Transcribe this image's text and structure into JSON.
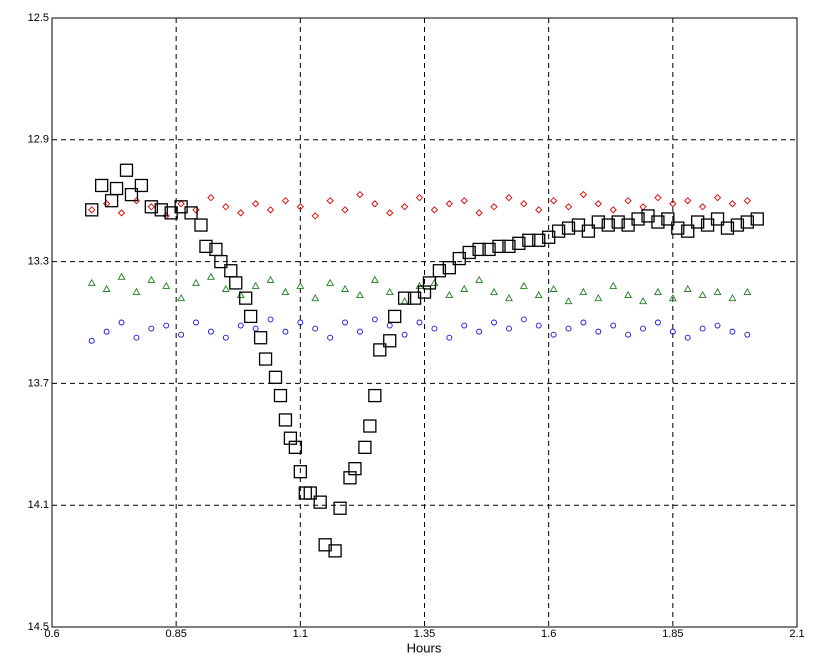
{
  "chart_data": {
    "type": "scatter",
    "x_label": "Hours",
    "xlim": [
      0.6,
      2.1
    ],
    "xticks": [
      0.6,
      0.85,
      1.1,
      1.35,
      1.6,
      1.85,
      2.1
    ],
    "ylim": [
      14.5,
      12.5
    ],
    "yticks": [
      12.5,
      12.9,
      13.3,
      13.7,
      14.1,
      14.5
    ],
    "grid": true,
    "series": [
      {
        "color": "#e00000",
        "marker": "diamond",
        "x": [
          0.68,
          0.71,
          0.74,
          0.77,
          0.8,
          0.83,
          0.86,
          0.89,
          0.92,
          0.95,
          0.98,
          1.01,
          1.04,
          1.07,
          1.1,
          1.13,
          1.16,
          1.19,
          1.22,
          1.25,
          1.28,
          1.31,
          1.34,
          1.37,
          1.4,
          1.43,
          1.46,
          1.49,
          1.52,
          1.55,
          1.58,
          1.61,
          1.64,
          1.67,
          1.7,
          1.73,
          1.76,
          1.79,
          1.82,
          1.85,
          1.88,
          1.91,
          1.94,
          1.97,
          2.0
        ],
        "values": [
          13.13,
          13.11,
          13.14,
          13.1,
          13.12,
          13.15,
          13.11,
          13.13,
          13.09,
          13.12,
          13.14,
          13.11,
          13.13,
          13.1,
          13.12,
          13.15,
          13.1,
          13.13,
          13.08,
          13.11,
          13.14,
          13.12,
          13.09,
          13.13,
          13.11,
          13.1,
          13.14,
          13.12,
          13.09,
          13.11,
          13.13,
          13.1,
          13.12,
          13.08,
          13.11,
          13.13,
          13.1,
          13.12,
          13.09,
          13.11,
          13.1,
          13.12,
          13.09,
          13.11,
          13.1
        ]
      },
      {
        "color": "#208020",
        "marker": "triangle",
        "x": [
          0.68,
          0.71,
          0.74,
          0.77,
          0.8,
          0.83,
          0.86,
          0.89,
          0.92,
          0.95,
          0.98,
          1.01,
          1.04,
          1.07,
          1.1,
          1.13,
          1.16,
          1.19,
          1.22,
          1.25,
          1.28,
          1.31,
          1.34,
          1.37,
          1.4,
          1.43,
          1.46,
          1.49,
          1.52,
          1.55,
          1.58,
          1.61,
          1.64,
          1.67,
          1.7,
          1.73,
          1.76,
          1.79,
          1.82,
          1.85,
          1.88,
          1.91,
          1.94,
          1.97,
          2.0
        ],
        "values": [
          13.37,
          13.39,
          13.35,
          13.4,
          13.36,
          13.38,
          13.42,
          13.37,
          13.35,
          13.39,
          13.41,
          13.38,
          13.36,
          13.4,
          13.38,
          13.42,
          13.37,
          13.39,
          13.41,
          13.36,
          13.4,
          13.43,
          13.38,
          13.37,
          13.41,
          13.39,
          13.36,
          13.4,
          13.42,
          13.38,
          13.41,
          13.39,
          13.43,
          13.4,
          13.42,
          13.38,
          13.41,
          13.43,
          13.4,
          13.42,
          13.39,
          13.41,
          13.4,
          13.42,
          13.4
        ]
      },
      {
        "color": "#1010e0",
        "marker": "circle",
        "x": [
          0.68,
          0.71,
          0.74,
          0.77,
          0.8,
          0.83,
          0.86,
          0.89,
          0.92,
          0.95,
          0.98,
          1.01,
          1.04,
          1.07,
          1.1,
          1.13,
          1.16,
          1.19,
          1.22,
          1.25,
          1.28,
          1.31,
          1.34,
          1.37,
          1.4,
          1.43,
          1.46,
          1.49,
          1.52,
          1.55,
          1.58,
          1.61,
          1.64,
          1.67,
          1.7,
          1.73,
          1.76,
          1.79,
          1.82,
          1.85,
          1.88,
          1.91,
          1.94,
          1.97,
          2.0
        ],
        "values": [
          13.56,
          13.53,
          13.5,
          13.55,
          13.52,
          13.51,
          13.54,
          13.5,
          13.53,
          13.55,
          13.51,
          13.52,
          13.49,
          13.53,
          13.5,
          13.52,
          13.55,
          13.5,
          13.53,
          13.49,
          13.51,
          13.54,
          13.5,
          13.52,
          13.55,
          13.51,
          13.53,
          13.5,
          13.52,
          13.49,
          13.51,
          13.54,
          13.52,
          13.5,
          13.53,
          13.51,
          13.54,
          13.52,
          13.5,
          13.53,
          13.55,
          13.52,
          13.51,
          13.53,
          13.54
        ]
      },
      {
        "color": "#000000",
        "marker": "square",
        "x": [
          0.68,
          0.7,
          0.72,
          0.73,
          0.75,
          0.76,
          0.78,
          0.8,
          0.82,
          0.84,
          0.86,
          0.88,
          0.9,
          0.91,
          0.93,
          0.94,
          0.96,
          0.97,
          0.99,
          1.0,
          1.02,
          1.03,
          1.05,
          1.06,
          1.07,
          1.08,
          1.09,
          1.1,
          1.11,
          1.12,
          1.14,
          1.15,
          1.17,
          1.18,
          1.2,
          1.21,
          1.23,
          1.24,
          1.25,
          1.26,
          1.28,
          1.29,
          1.31,
          1.33,
          1.35,
          1.36,
          1.38,
          1.4,
          1.42,
          1.44,
          1.46,
          1.48,
          1.5,
          1.52,
          1.54,
          1.56,
          1.58,
          1.6,
          1.62,
          1.64,
          1.66,
          1.68,
          1.7,
          1.72,
          1.74,
          1.76,
          1.78,
          1.8,
          1.82,
          1.84,
          1.86,
          1.88,
          1.9,
          1.92,
          1.94,
          1.96,
          1.98,
          2.0,
          2.02
        ],
        "values": [
          13.13,
          13.05,
          13.1,
          13.06,
          13.0,
          13.08,
          13.05,
          13.12,
          13.13,
          13.14,
          13.12,
          13.14,
          13.18,
          13.25,
          13.26,
          13.3,
          13.33,
          13.37,
          13.42,
          13.48,
          13.55,
          13.62,
          13.68,
          13.74,
          13.82,
          13.88,
          13.91,
          13.99,
          14.06,
          14.06,
          14.09,
          14.23,
          14.25,
          14.11,
          14.01,
          13.98,
          13.91,
          13.84,
          13.74,
          13.59,
          13.56,
          13.48,
          13.42,
          13.42,
          13.4,
          13.37,
          13.33,
          13.32,
          13.29,
          13.27,
          13.26,
          13.26,
          13.25,
          13.25,
          13.24,
          13.23,
          13.23,
          13.22,
          13.2,
          13.19,
          13.18,
          13.2,
          13.17,
          13.18,
          13.17,
          13.18,
          13.16,
          13.15,
          13.17,
          13.16,
          13.19,
          13.2,
          13.17,
          13.18,
          13.16,
          13.19,
          13.18,
          13.17,
          13.16
        ]
      }
    ]
  }
}
